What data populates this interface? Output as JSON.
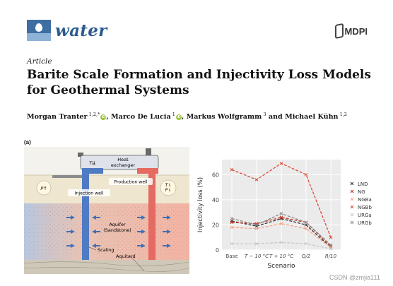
{
  "header": {
    "journal_name": "water",
    "journal_logo_icon": "water-drop-logo-icon",
    "publisher": "MDPI",
    "publisher_icon": "mdpi-logo-icon"
  },
  "article": {
    "type": "Article",
    "title": "Barite Scale Formation and Injectivity Loss Models for Geothermal Systems",
    "authors": [
      {
        "name": "Morgan Tranter",
        "affil": "1,2,*",
        "orcid": true,
        "sep": ", "
      },
      {
        "name": "Marco De Lucia",
        "affil": "1",
        "orcid": true,
        "sep": ", "
      },
      {
        "name": "Markus Wolfgramm",
        "affil": "3",
        "orcid": false,
        "sep": " and "
      },
      {
        "name": "Michael Kühn",
        "affil": "1,2",
        "orcid": false,
        "sep": ""
      }
    ]
  },
  "figure": {
    "panel_label": "(a)",
    "diagram": {
      "heat_exchanger": "Heat exchanger",
      "heat_exchanger_state": "T⇊",
      "production_well": "Production well",
      "injection_well": "Injection well",
      "injection_state": "P↑",
      "production_state_t": "T⇂",
      "production_state_p": "P⇂",
      "aquifer": "Aquifer (Sandstone)",
      "scaling": "Scaling",
      "aquitard": "Aquitard"
    }
  },
  "chart_data": {
    "type": "line",
    "categories": [
      "Base",
      "T − 10 °C",
      "T + 10 °C",
      "Q/2",
      "R/10"
    ],
    "xlabel": "Scenario",
    "ylabel": "Injectivity loss (%)",
    "ylim": [
      0,
      72
    ],
    "yticks": [
      0,
      20,
      40,
      60
    ],
    "grid": true,
    "legend_position": "right",
    "series": [
      {
        "name": "LND",
        "color": "#333333",
        "values": [
          23,
          19,
          25,
          20,
          2
        ]
      },
      {
        "name": "NG",
        "color": "#c0392b",
        "values": [
          22,
          21,
          26,
          22,
          3
        ]
      },
      {
        "name": "NGBa",
        "color": "#f0a48c",
        "values": [
          18,
          17,
          21,
          17,
          2
        ]
      },
      {
        "name": "NGBb",
        "color": "#d94d3a",
        "values": [
          64,
          56,
          69,
          60,
          10
        ]
      },
      {
        "name": "URGa",
        "color": "#c8c8c8",
        "values": [
          5,
          5,
          6,
          5,
          1
        ]
      },
      {
        "name": "URGb",
        "color": "#8a8a8a",
        "values": [
          25,
          20,
          29,
          22,
          4
        ]
      }
    ]
  },
  "watermark": "CSDN @zmjia111"
}
